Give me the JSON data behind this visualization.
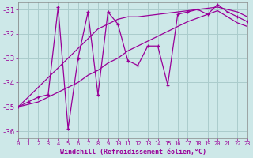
{
  "xlabel": "Windchill (Refroidissement éolien,°C)",
  "background_color": "#cde8e8",
  "grid_color": "#aacccc",
  "line_color": "#990099",
  "xlim": [
    0,
    23
  ],
  "ylim": [
    -36.3,
    -30.7
  ],
  "yticks": [
    -36,
    -35,
    -34,
    -33,
    -32,
    -31
  ],
  "xticks": [
    0,
    1,
    2,
    3,
    4,
    5,
    6,
    7,
    8,
    9,
    10,
    11,
    12,
    13,
    14,
    15,
    16,
    17,
    18,
    19,
    20,
    21,
    22,
    23
  ],
  "x": [
    0,
    1,
    2,
    3,
    4,
    5,
    6,
    7,
    8,
    9,
    10,
    11,
    12,
    13,
    14,
    15,
    16,
    17,
    18,
    19,
    20,
    21,
    22,
    23
  ],
  "y_main": [
    -35.0,
    -34.8,
    -34.6,
    -34.5,
    -30.9,
    -35.9,
    -33.0,
    -31.1,
    -34.5,
    -31.1,
    -31.6,
    -33.1,
    -33.3,
    -32.5,
    -32.5,
    -34.1,
    -31.2,
    -31.1,
    -31.0,
    -31.2,
    -30.8,
    -31.1,
    -31.3,
    -31.5
  ],
  "y_trend_upper": [
    -35.0,
    -34.6,
    -34.2,
    -33.8,
    -33.4,
    -33.0,
    -32.6,
    -32.2,
    -31.8,
    -31.6,
    -31.4,
    -31.3,
    -31.3,
    -31.25,
    -31.2,
    -31.15,
    -31.1,
    -31.05,
    -31.0,
    -30.95,
    -30.9,
    -31.0,
    -31.1,
    -31.3
  ],
  "y_trend_lower": [
    -35.0,
    -34.9,
    -34.8,
    -34.6,
    -34.4,
    -34.2,
    -34.0,
    -33.7,
    -33.5,
    -33.2,
    -33.0,
    -32.7,
    -32.5,
    -32.3,
    -32.1,
    -31.9,
    -31.7,
    -31.5,
    -31.35,
    -31.2,
    -31.05,
    -31.3,
    -31.55,
    -31.7
  ]
}
